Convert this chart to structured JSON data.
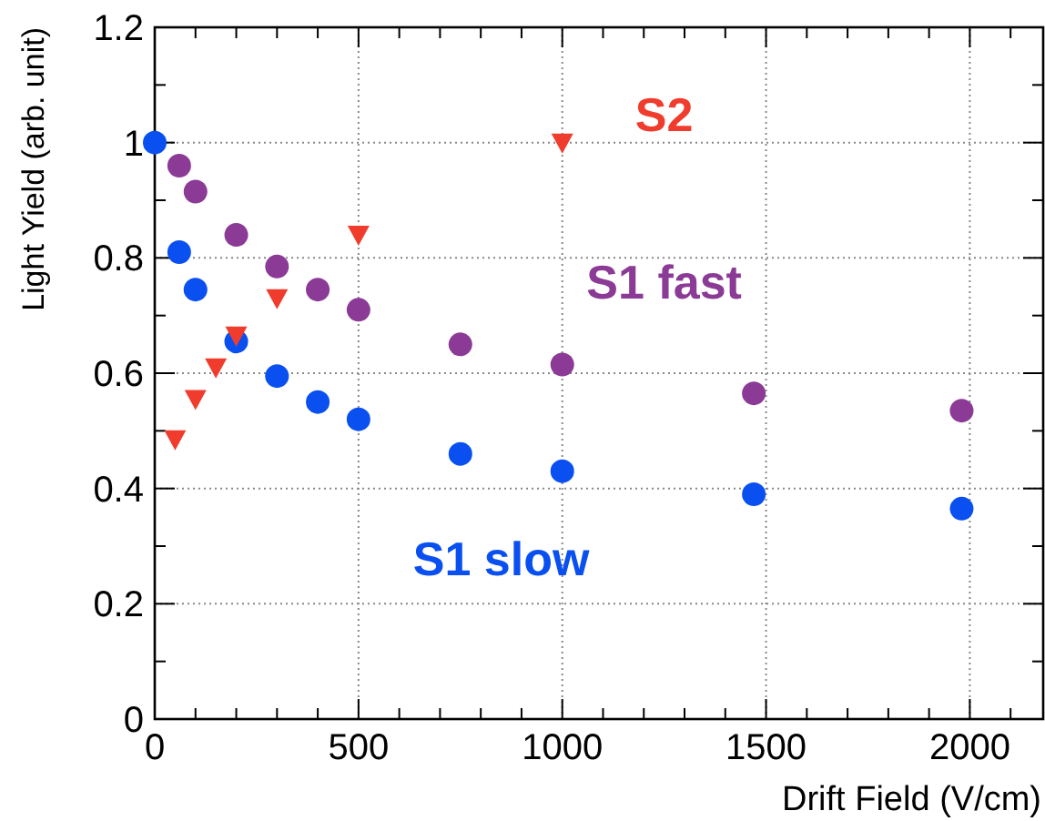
{
  "chart_data": {
    "type": "scatter",
    "xlabel": "Drift Field (V/cm)",
    "ylabel": "Light Yield (arb. unit)",
    "xlim": [
      0,
      2180
    ],
    "ylim": [
      0,
      1.2
    ],
    "xticks": [
      0,
      {
        "value": 100,
        "label": null
      },
      {
        "value": 200,
        "label": null
      },
      {
        "value": 300,
        "label": null
      },
      {
        "value": 400,
        "label": null
      },
      500,
      {
        "value": 600,
        "label": null
      },
      {
        "value": 700,
        "label": null
      },
      {
        "value": 800,
        "label": null
      },
      {
        "value": 900,
        "label": null
      },
      1000,
      {
        "value": 1100,
        "label": null
      },
      {
        "value": 1200,
        "label": null
      },
      {
        "value": 1300,
        "label": null
      },
      {
        "value": 1400,
        "label": null
      },
      1500,
      {
        "value": 1600,
        "label": null
      },
      {
        "value": 1700,
        "label": null
      },
      {
        "value": 1800,
        "label": null
      },
      {
        "value": 1900,
        "label": null
      },
      2000,
      {
        "value": 2100,
        "label": null
      }
    ],
    "yticks": [
      0,
      {
        "value": 0.1,
        "label": null
      },
      0.2,
      {
        "value": 0.3,
        "label": null
      },
      0.4,
      {
        "value": 0.5,
        "label": null
      },
      0.6,
      {
        "value": 0.7,
        "label": null
      },
      0.8,
      {
        "value": 0.9,
        "label": null
      },
      1,
      {
        "value": 1.1,
        "label": null
      },
      1.2
    ],
    "grid": true,
    "series": [
      {
        "name": "S2",
        "color": "#f03c2c",
        "marker": "triangle",
        "x": [
          50,
          100,
          150,
          200,
          300,
          500,
          1000
        ],
        "values": [
          0.485,
          0.555,
          0.61,
          0.665,
          0.73,
          0.84,
          1.0
        ]
      },
      {
        "name": "S1 fast",
        "color": "#8b3a96",
        "marker": "circle",
        "x": [
          60,
          100,
          200,
          300,
          400,
          500,
          750,
          1000,
          1470,
          1980
        ],
        "values": [
          0.96,
          0.915,
          0.84,
          0.785,
          0.745,
          0.71,
          0.65,
          0.615,
          0.565,
          0.535
        ]
      },
      {
        "name": "S1 slow",
        "color": "#0a50f0",
        "marker": "circle",
        "x": [
          0,
          60,
          100,
          200,
          300,
          400,
          500,
          750,
          1000,
          1470,
          1980
        ],
        "values": [
          1.0,
          0.81,
          0.745,
          0.655,
          0.595,
          0.55,
          0.52,
          0.46,
          0.43,
          0.39,
          0.365
        ]
      }
    ]
  }
}
